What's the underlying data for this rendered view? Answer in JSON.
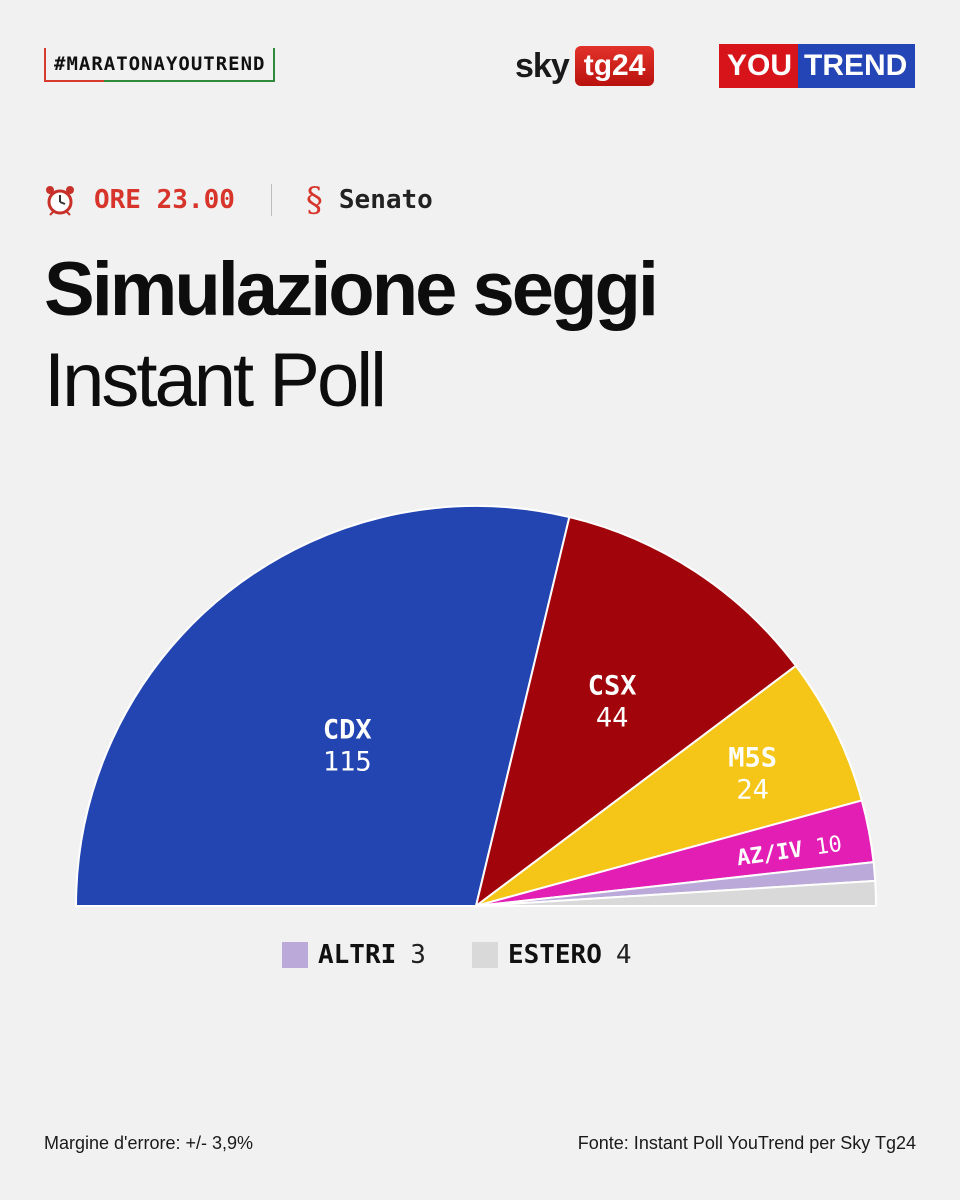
{
  "header": {
    "hashtag": "#MARATONAYOUTREND",
    "sky_word": "sky",
    "tg_word": "tg24",
    "yt_you": "YOU",
    "yt_trend": "TREND"
  },
  "meta": {
    "time": "ORE 23.00",
    "chamber": "Senato",
    "icons": {
      "time": "alarm-clock-icon",
      "chamber": "senate-s-icon"
    }
  },
  "title": "Simulazione seggi",
  "subtitle": "Instant Poll",
  "chart_data": {
    "type": "pie",
    "variant": "half-donut-parliament",
    "title": "Simulazione seggi",
    "subtitle": "Instant Poll",
    "total_seats": 200,
    "series": [
      {
        "name": "CDX",
        "value": 115,
        "color": "#2345b2",
        "label_color": "#ffffff"
      },
      {
        "name": "CSX",
        "value": 44,
        "color": "#a1040a",
        "label_color": "#ffffff"
      },
      {
        "name": "M5S",
        "value": 24,
        "color": "#f5c518",
        "label_color": "#ffffff"
      },
      {
        "name": "AZ/IV",
        "value": 10,
        "color": "#e31eb4",
        "label_color": "#ffffff"
      },
      {
        "name": "ALTRI",
        "value": 3,
        "color": "#bba9da",
        "label_color": "#111111"
      },
      {
        "name": "ESTERO",
        "value": 4,
        "color": "#d9d9d9",
        "label_color": "#111111"
      }
    ],
    "legend": [
      {
        "name": "ALTRI",
        "value": 3,
        "color": "#bba9da"
      },
      {
        "name": "ESTERO",
        "value": 4,
        "color": "#d9d9d9"
      }
    ]
  },
  "footer": {
    "margin_note": "Margine d'errore: +/- 3,9%",
    "source": "Fonte: Instant Poll YouTrend per Sky Tg24"
  }
}
